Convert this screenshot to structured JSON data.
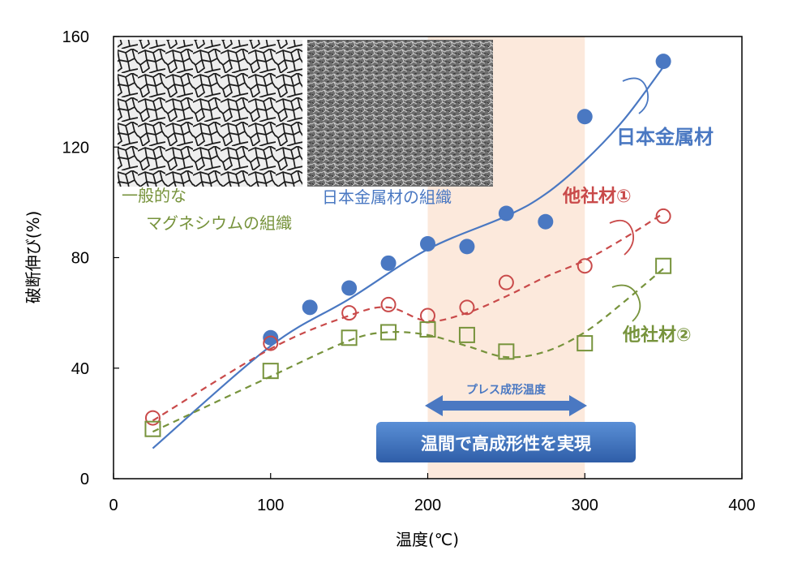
{
  "chart_data": {
    "type": "scatter",
    "xlabel": "温度(℃)",
    "ylabel": "破断伸び(%)",
    "xlim": [
      0,
      400
    ],
    "ylim": [
      0,
      160
    ],
    "xticks": [
      0,
      100,
      200,
      300,
      400
    ],
    "yticks": [
      0,
      40,
      80,
      120,
      160
    ],
    "grid": false,
    "highlight_band": {
      "x_range": [
        200,
        300
      ],
      "label": "プレス成形温度"
    },
    "series": [
      {
        "name": "日本金属材",
        "color": "#4a78c2",
        "marker": "filled-circle",
        "points": [
          [
            100,
            51
          ],
          [
            125,
            62
          ],
          [
            150,
            69
          ],
          [
            175,
            78
          ],
          [
            200,
            85
          ],
          [
            225,
            84
          ],
          [
            250,
            96
          ],
          [
            275,
            93
          ],
          [
            300,
            131
          ],
          [
            350,
            151
          ]
        ],
        "trend": "solid",
        "trend_points": [
          [
            25,
            11
          ],
          [
            100,
            48
          ],
          [
            150,
            65
          ],
          [
            200,
            83
          ],
          [
            250,
            95
          ],
          [
            275,
            103
          ],
          [
            300,
            115
          ],
          [
            325,
            130
          ],
          [
            350,
            149
          ]
        ]
      },
      {
        "name": "他社材①",
        "color": "#c94a4a",
        "marker": "open-circle",
        "points": [
          [
            25,
            22
          ],
          [
            100,
            49
          ],
          [
            150,
            60
          ],
          [
            175,
            63
          ],
          [
            200,
            59
          ],
          [
            225,
            62
          ],
          [
            250,
            71
          ],
          [
            300,
            77
          ],
          [
            350,
            95
          ]
        ],
        "trend": "dashed",
        "trend_points": [
          [
            25,
            21
          ],
          [
            100,
            47
          ],
          [
            150,
            59
          ],
          [
            175,
            62
          ],
          [
            200,
            57
          ],
          [
            225,
            60
          ],
          [
            250,
            66
          ],
          [
            275,
            73
          ],
          [
            300,
            79
          ],
          [
            325,
            87
          ],
          [
            350,
            96
          ]
        ]
      },
      {
        "name": "他社材②",
        "color": "#77933c",
        "marker": "open-square",
        "points": [
          [
            25,
            18
          ],
          [
            100,
            39
          ],
          [
            150,
            51
          ],
          [
            175,
            53
          ],
          [
            200,
            54
          ],
          [
            225,
            52
          ],
          [
            250,
            46
          ],
          [
            300,
            49
          ],
          [
            350,
            77
          ]
        ],
        "trend": "dashed",
        "trend_points": [
          [
            25,
            17
          ],
          [
            100,
            37
          ],
          [
            150,
            50
          ],
          [
            175,
            53
          ],
          [
            200,
            52
          ],
          [
            225,
            48
          ],
          [
            250,
            44
          ],
          [
            275,
            46
          ],
          [
            300,
            53
          ],
          [
            325,
            64
          ],
          [
            350,
            76
          ]
        ]
      }
    ]
  },
  "labels": {
    "series1": "日本金属材",
    "series2": "他社材①",
    "series3": "他社材②",
    "press_range": "プレス成形温度",
    "banner": "温間で高成形性を実現",
    "micro_left_line1": "一般的な",
    "micro_left_line2": "マグネシウムの組織",
    "micro_right": "日本金属材の組織"
  },
  "colors": {
    "blue": "#4a78c2",
    "red": "#c94a4a",
    "green": "#77933c",
    "band": "#fce9dc",
    "banner": "#3f73bd"
  }
}
